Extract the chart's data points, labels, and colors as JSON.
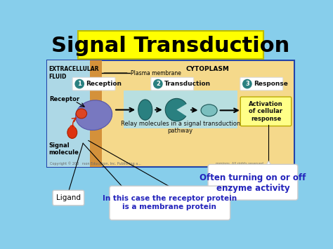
{
  "bg_color": "#87CEEB",
  "title": "Signal Transduction",
  "title_bg": "#FFFF00",
  "title_color": "#000000",
  "title_fontsize": 22,
  "diagram_bg": "#F5D98B",
  "extracellular_bg": "#ADD8E6",
  "membrane_color": "#D4913A",
  "relay_bg": "#B8DFE0",
  "bottom_note1": "Often turning on or off\nenzyme activity",
  "bottom_note2": "In this case the receptor protein\nis a membrane protein",
  "ligand_label": "Ligand",
  "receptor_label": "Receptor",
  "signal_label": "Signal\nmolecule",
  "extracellular_label": "EXTRACELLULAR\nFLUID",
  "cytoplasm_label": "CYTOPLASM",
  "plasma_label": "Plasma membrane",
  "relay_label": "Relay molecules in a signal transduction\npathway",
  "activation_label": "Activation\nof cellular\nresponse",
  "step1": "Reception",
  "step2": "Transduction",
  "step3": "Response",
  "teal_dark": "#2A8080",
  "teal_light": "#7BBFBF",
  "purple_color": "#7878C0",
  "red_orange": "#DD3300",
  "note_blue": "#2222BB",
  "white": "#FFFFFF",
  "note_border": "#CCCCCC",
  "diag_border": "#2244AA"
}
